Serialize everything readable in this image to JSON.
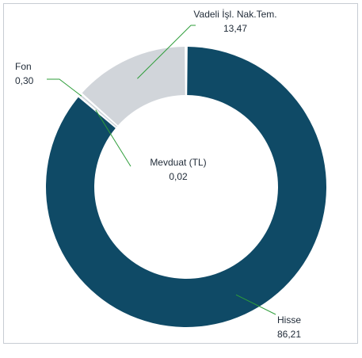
{
  "chart_data": {
    "type": "pie",
    "donut": true,
    "title": "",
    "slices": [
      {
        "label": "Hisse",
        "value": 86.21,
        "value_text": "86,21",
        "color": "#0f4a66"
      },
      {
        "label": "Mevduat (TL)",
        "value": 0.02,
        "value_text": "0,02",
        "color": "#8aa0b0"
      },
      {
        "label": "Fon",
        "value": 0.3,
        "value_text": "0,30",
        "color": "#c9d0d6"
      },
      {
        "label": "Vadeli İşl. Nak.Tem.",
        "value": 13.47,
        "value_text": "13,47",
        "color": "#d1d5da"
      }
    ],
    "legend": "none",
    "leader_line_color": "#2e9e3a"
  }
}
